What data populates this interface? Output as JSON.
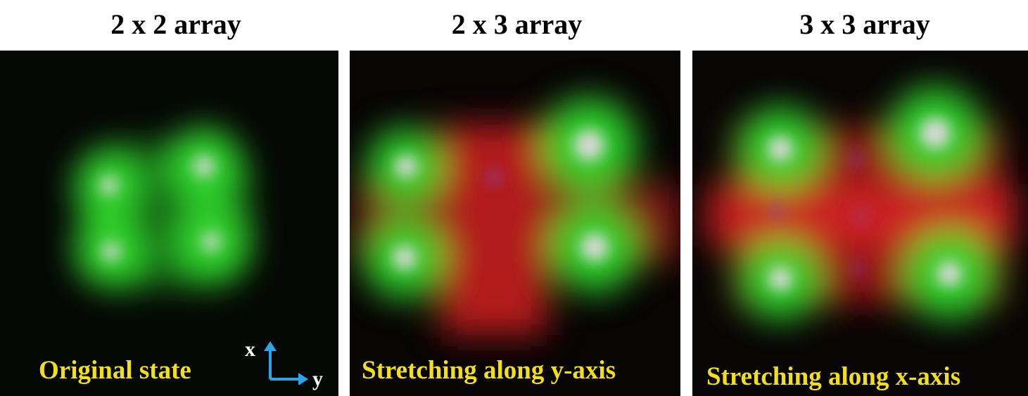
{
  "panels": [
    {
      "title": "2 x 2 array",
      "caption": "Original state"
    },
    {
      "title": "2 x 3 array",
      "caption": "Stretching along y-axis"
    },
    {
      "title": "3 x 3 array",
      "caption": "Stretching along x-axis"
    }
  ],
  "axes": {
    "x_label": "x",
    "y_label": "y",
    "arrow_color": "#2aa6e8"
  },
  "colors": {
    "spot_green": "#2fd02a",
    "spot_core": "#d8d8d8",
    "glow_red": "#c81e1e",
    "caption_yellow": "#f2df1c",
    "background": "#050805"
  }
}
